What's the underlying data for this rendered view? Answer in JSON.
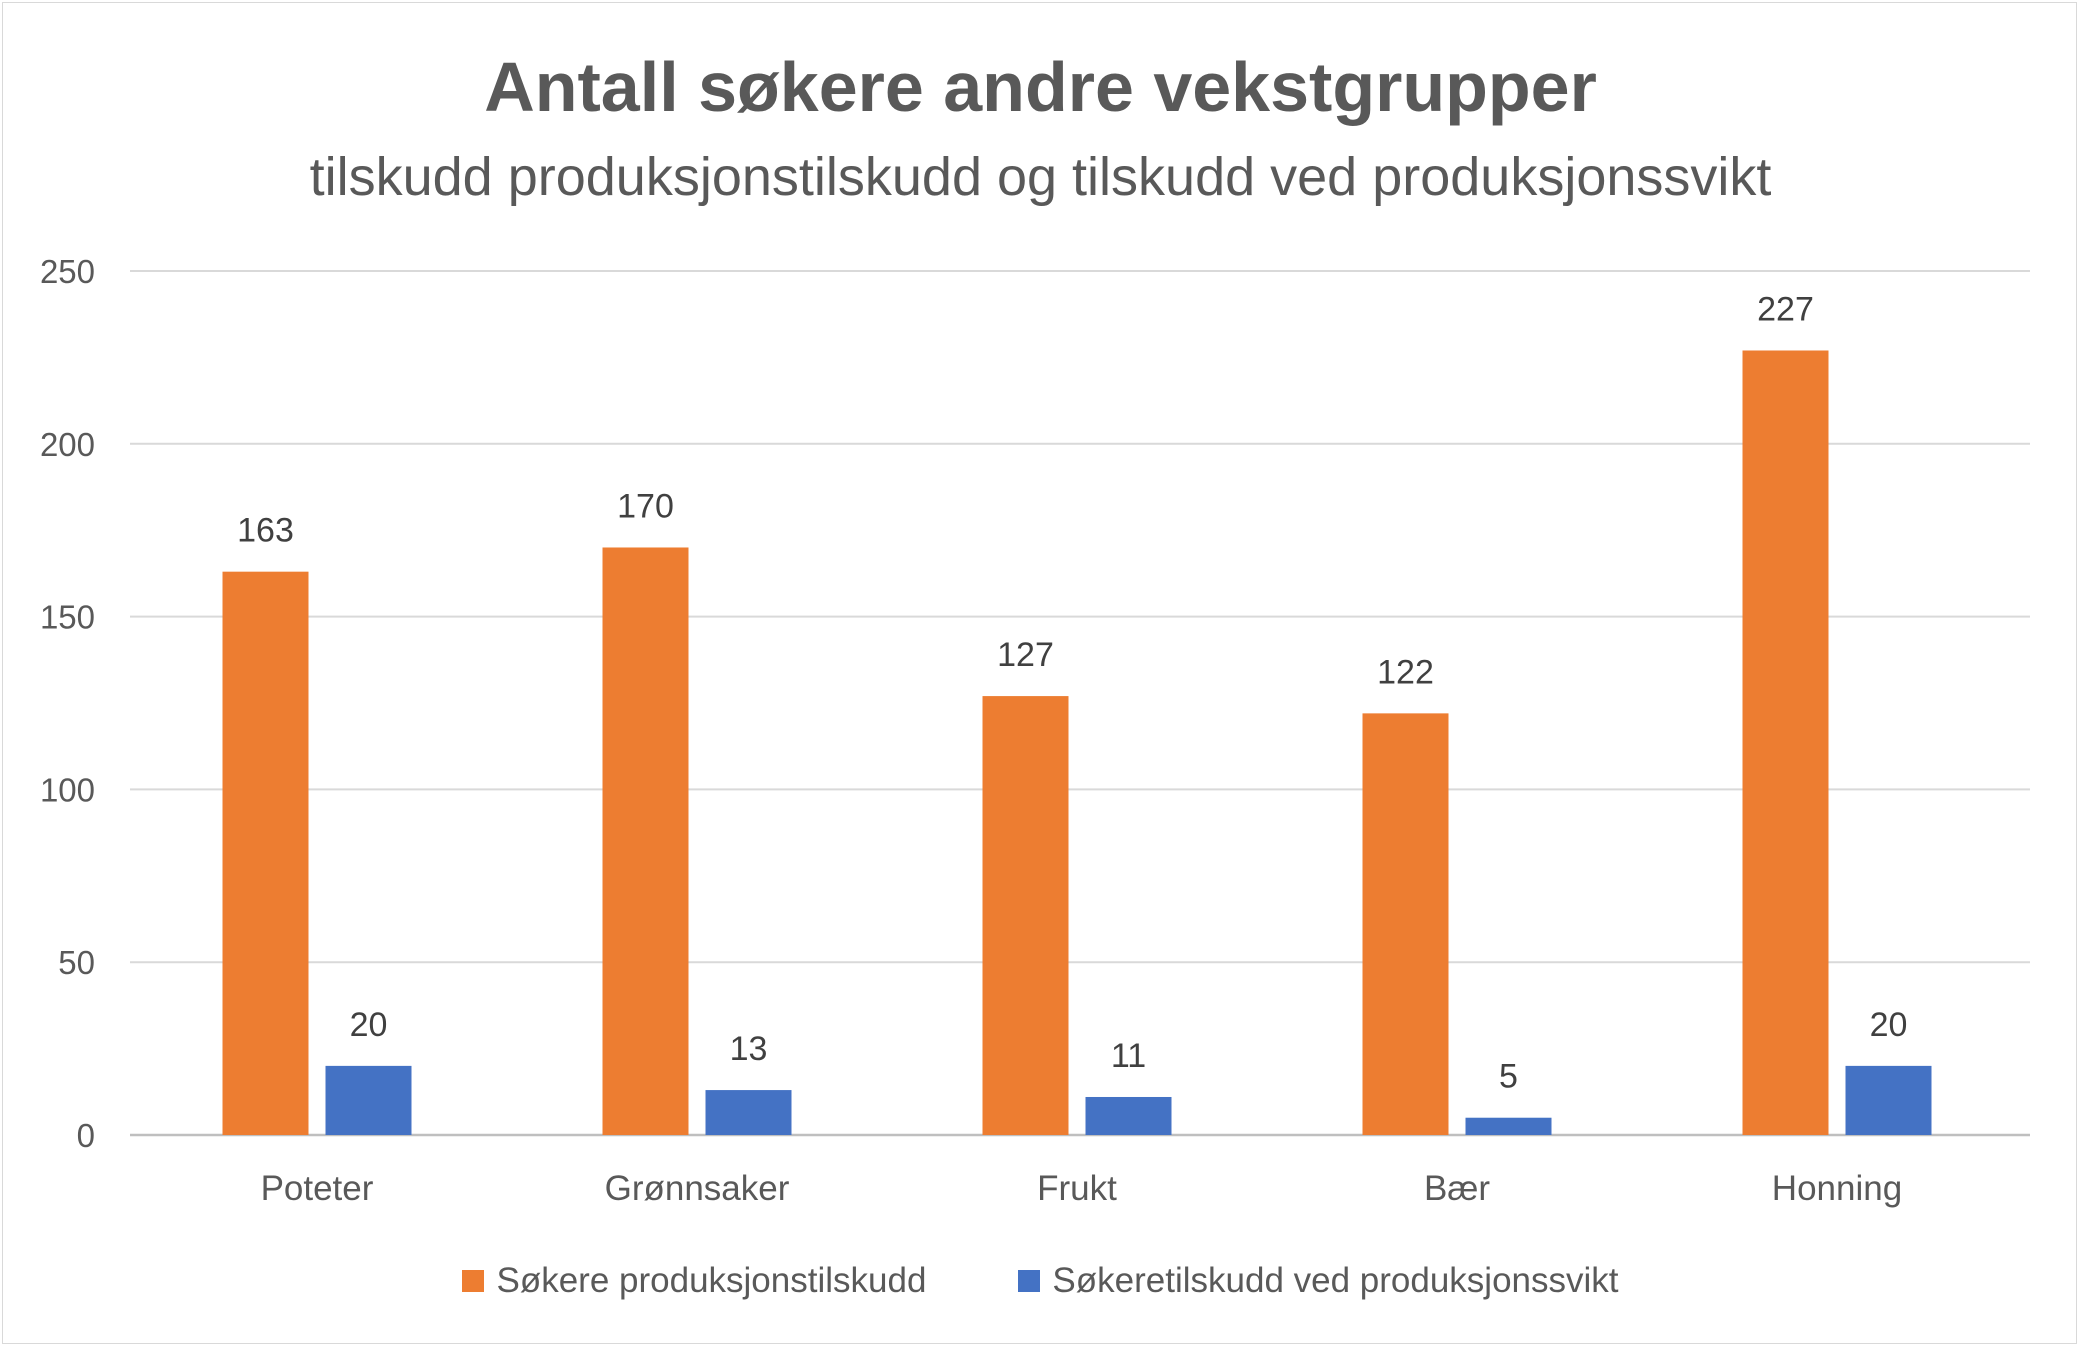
{
  "chart_data": {
    "type": "bar",
    "title": "Antall søkere andre vekstgrupper",
    "subtitle": "tilskudd produksjonstilskudd og tilskudd ved produksjonssvikt",
    "categories": [
      "Poteter",
      "Grønnsaker",
      "Frukt",
      "Bær",
      "Honning"
    ],
    "series": [
      {
        "name": "Søkere produksjonstilskudd",
        "values": [
          163,
          170,
          127,
          122,
          227
        ],
        "color": "#ED7D31"
      },
      {
        "name": "Søkeretilskudd ved produksjonssvikt",
        "values": [
          20,
          13,
          11,
          5,
          20
        ],
        "color": "#4472C4"
      }
    ],
    "ylim": [
      0,
      250
    ],
    "yticks": [
      0,
      50,
      100,
      150,
      200,
      250
    ],
    "grid": true,
    "data_labels": true,
    "legend_position": "bottom"
  }
}
